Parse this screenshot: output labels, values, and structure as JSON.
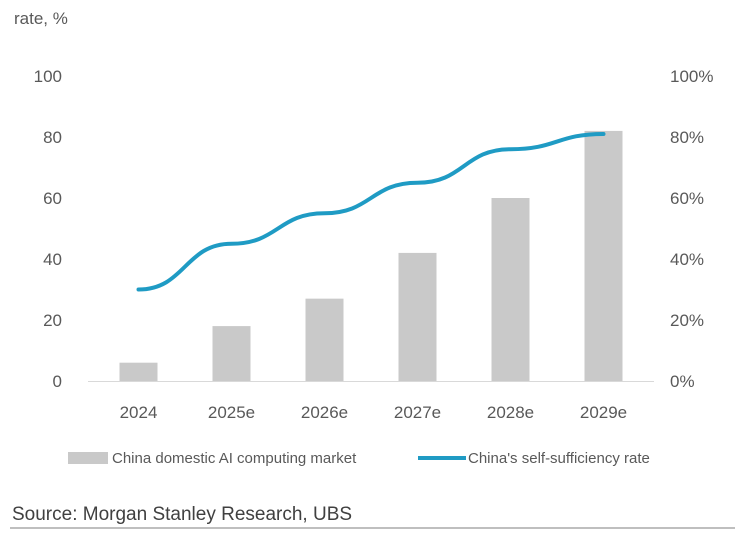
{
  "chart_data": {
    "type": "bar",
    "title": "",
    "top_caption": "rate, %",
    "categories": [
      "2024",
      "2025e",
      "2026e",
      "2027e",
      "2028e",
      "2029e"
    ],
    "series": [
      {
        "name": "China domestic AI computing market",
        "type": "bar",
        "axis": "left",
        "color": "#c9c9c9",
        "values": [
          6,
          18,
          27,
          42,
          60,
          82
        ]
      },
      {
        "name": "China's self-sufficiency rate",
        "type": "line",
        "axis": "right",
        "color": "#1f9bc4",
        "values": [
          30,
          45,
          55,
          65,
          76,
          81
        ]
      }
    ],
    "y_left": {
      "min": 0,
      "max": 100,
      "ticks": [
        "0",
        "20",
        "40",
        "60",
        "80",
        "100"
      ]
    },
    "y_right": {
      "min": 0,
      "max": 100,
      "ticks": [
        "0%",
        "20%",
        "40%",
        "60%",
        "80%",
        "100%"
      ]
    },
    "grid": false,
    "legend_position": "bottom",
    "source": "Source: Morgan Stanley Research, UBS"
  }
}
